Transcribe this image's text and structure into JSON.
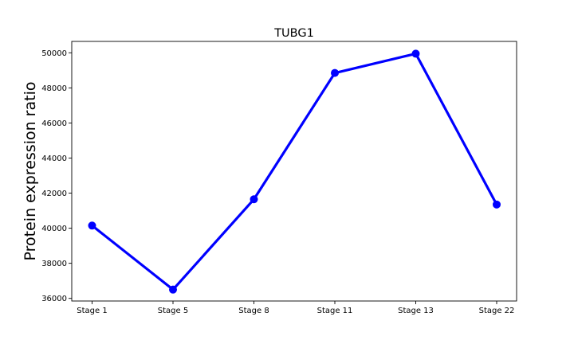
{
  "chart_data": {
    "type": "line",
    "title": "TUBG1",
    "xlabel": "",
    "ylabel": "Protein expression ratio",
    "categories": [
      "Stage 1",
      "Stage 5",
      "Stage 8",
      "Stage 11",
      "Stage 13",
      "Stage 22"
    ],
    "series": [
      {
        "values": [
          40150,
          36500,
          41650,
          48850,
          49950,
          41350
        ],
        "color": "#0000ff"
      }
    ],
    "ylim": [
      35850,
      50650
    ],
    "yticks": [
      36000,
      38000,
      40000,
      42000,
      44000,
      46000,
      48000,
      50000
    ],
    "ytick_labels": [
      "36000",
      "38000",
      "40000",
      "42000",
      "44000",
      "46000",
      "48000",
      "50000"
    ],
    "grid": false,
    "legend": "none"
  }
}
